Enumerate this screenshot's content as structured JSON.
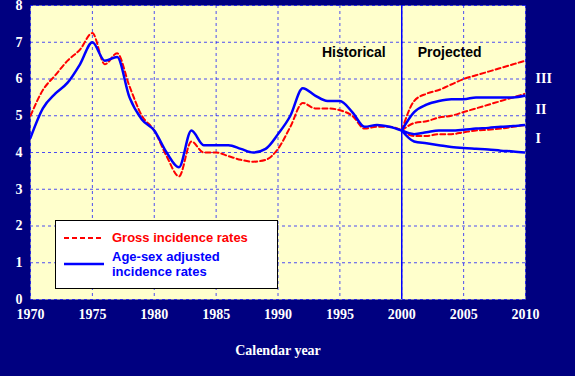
{
  "chart_data": {
    "type": "line",
    "xlabel": "Calendar year",
    "annotations": [
      "Historical",
      "Projected"
    ],
    "projection_start": 2000,
    "x": [
      1970,
      1971,
      1972,
      1973,
      1974,
      1975,
      1976,
      1977,
      1978,
      1979,
      1980,
      1981,
      1982,
      1983,
      1984,
      1985,
      1986,
      1987,
      1988,
      1989,
      1990,
      1991,
      1992,
      1993,
      1994,
      1995,
      1996,
      1997,
      1998,
      1999,
      2000,
      2001,
      2002,
      2003,
      2004,
      2005,
      2006,
      2007,
      2008,
      2009,
      2010
    ],
    "series": [
      {
        "name": "Gross incidence rates",
        "color": "#ff0000",
        "line_style": "dashed",
        "values": [
          5.0,
          5.7,
          6.1,
          6.5,
          6.8,
          7.25,
          6.4,
          6.7,
          5.8,
          5.0,
          4.6,
          3.9,
          3.35,
          4.3,
          4.0,
          4.0,
          3.9,
          3.8,
          3.75,
          3.8,
          4.1,
          4.7,
          5.35,
          5.2,
          5.2,
          5.15,
          5.0,
          4.65,
          4.7,
          4.7,
          4.6,
          null,
          null,
          null,
          null,
          null,
          null,
          null,
          null,
          null,
          null
        ],
        "projections": [
          {
            "name": "I",
            "values": [
              null,
              null,
              null,
              null,
              null,
              null,
              null,
              null,
              null,
              null,
              null,
              null,
              null,
              null,
              null,
              null,
              null,
              null,
              null,
              null,
              null,
              null,
              null,
              null,
              null,
              null,
              null,
              null,
              null,
              null,
              4.6,
              4.45,
              4.45,
              4.5,
              4.5,
              4.55,
              4.6,
              4.62,
              4.65,
              4.7,
              4.75
            ]
          },
          {
            "name": "II",
            "values": [
              null,
              null,
              null,
              null,
              null,
              null,
              null,
              null,
              null,
              null,
              null,
              null,
              null,
              null,
              null,
              null,
              null,
              null,
              null,
              null,
              null,
              null,
              null,
              null,
              null,
              null,
              null,
              null,
              null,
              null,
              4.6,
              4.8,
              4.85,
              4.95,
              5.0,
              5.1,
              5.2,
              5.3,
              5.4,
              5.5,
              5.6
            ]
          },
          {
            "name": "III",
            "values": [
              null,
              null,
              null,
              null,
              null,
              null,
              null,
              null,
              null,
              null,
              null,
              null,
              null,
              null,
              null,
              null,
              null,
              null,
              null,
              null,
              null,
              null,
              null,
              null,
              null,
              null,
              null,
              null,
              null,
              null,
              4.6,
              5.4,
              5.6,
              5.7,
              5.85,
              6.0,
              6.1,
              6.2,
              6.3,
              6.4,
              6.5
            ]
          }
        ]
      },
      {
        "name": "Age-sex adjusted incidence rates",
        "color": "#0000ff",
        "line_style": "solid",
        "values": [
          4.4,
          5.2,
          5.6,
          5.9,
          6.4,
          7.0,
          6.5,
          6.6,
          5.5,
          4.9,
          4.6,
          4.0,
          3.6,
          4.6,
          4.2,
          4.2,
          4.2,
          4.1,
          4.0,
          4.1,
          4.5,
          5.0,
          5.75,
          5.55,
          5.4,
          5.4,
          5.1,
          4.7,
          4.75,
          4.7,
          4.6,
          null,
          null,
          null,
          null,
          null,
          null,
          null,
          null,
          null,
          null
        ],
        "projections": [
          {
            "name": "I",
            "values": [
              null,
              null,
              null,
              null,
              null,
              null,
              null,
              null,
              null,
              null,
              null,
              null,
              null,
              null,
              null,
              null,
              null,
              null,
              null,
              null,
              null,
              null,
              null,
              null,
              null,
              null,
              null,
              null,
              null,
              null,
              4.6,
              4.3,
              4.25,
              4.2,
              4.15,
              4.12,
              4.1,
              4.08,
              4.05,
              4.03,
              4.0
            ]
          },
          {
            "name": "II",
            "values": [
              null,
              null,
              null,
              null,
              null,
              null,
              null,
              null,
              null,
              null,
              null,
              null,
              null,
              null,
              null,
              null,
              null,
              null,
              null,
              null,
              null,
              null,
              null,
              null,
              null,
              null,
              null,
              null,
              null,
              null,
              4.6,
              4.5,
              4.55,
              4.6,
              4.6,
              4.62,
              4.65,
              4.67,
              4.7,
              4.72,
              4.75
            ]
          },
          {
            "name": "III",
            "values": [
              null,
              null,
              null,
              null,
              null,
              null,
              null,
              null,
              null,
              null,
              null,
              null,
              null,
              null,
              null,
              null,
              null,
              null,
              null,
              null,
              null,
              null,
              null,
              null,
              null,
              null,
              null,
              null,
              null,
              null,
              4.6,
              5.1,
              5.3,
              5.4,
              5.45,
              5.45,
              5.5,
              5.5,
              5.5,
              5.5,
              5.55
            ]
          }
        ]
      }
    ],
    "xlim": [
      1970,
      2010
    ],
    "ylim": [
      0,
      8
    ],
    "xticks": [
      1970,
      1975,
      1980,
      1985,
      1990,
      1995,
      2000,
      2005,
      2010
    ],
    "yticks": [
      0,
      1,
      2,
      3,
      4,
      5,
      6,
      7,
      8
    ],
    "grid": true,
    "legend": "lower left"
  }
}
